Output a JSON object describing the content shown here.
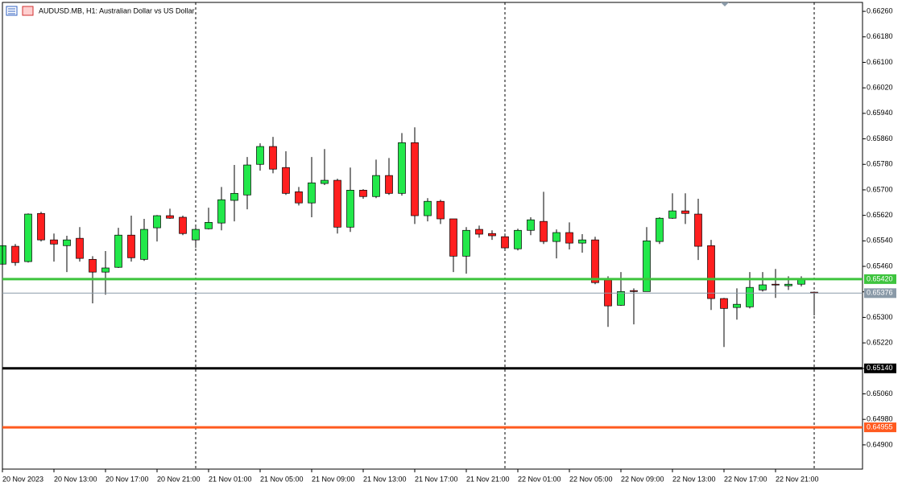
{
  "chart_data": {
    "type": "candlestick",
    "title": "AUDUSD.MB, H1:  Australian Dollar vs US Dollar",
    "categories": [
      "20 Nov 2023",
      null,
      null,
      null,
      "20 Nov 13:00",
      null,
      null,
      null,
      "20 Nov 17:00",
      null,
      null,
      null,
      "20 Nov 21:00",
      null,
      null,
      null,
      "21 Nov 01:00",
      null,
      null,
      null,
      "21 Nov 05:00",
      null,
      null,
      null,
      "21 Nov 09:00",
      null,
      null,
      null,
      "21 Nov 13:00",
      null,
      null,
      null,
      "21 Nov 17:00",
      null,
      null,
      null,
      "21 Nov 21:00",
      null,
      null,
      null,
      "22 Nov 01:00",
      null,
      null,
      null,
      "22 Nov 05:00",
      null,
      null,
      null,
      "22 Nov 09:00",
      null,
      null,
      null,
      "22 Nov 13:00",
      null,
      null,
      null,
      "22 Nov 17:00",
      null,
      null,
      null,
      "22 Nov 21:00",
      null,
      null,
      null
    ],
    "open": [
      0.65467,
      0.65523,
      0.65475,
      0.65626,
      0.65543,
      0.65525,
      0.65548,
      0.65482,
      0.65442,
      0.65457,
      0.65558,
      0.65482,
      0.65581,
      0.65619,
      0.65614,
      0.65543,
      0.65578,
      0.65596,
      0.65667,
      0.65684,
      0.6578,
      0.65836,
      0.6577,
      0.65694,
      0.65659,
      0.6572,
      0.6573,
      0.65583,
      0.65699,
      0.65679,
      0.65745,
      0.65689,
      0.65848,
      0.65619,
      0.65664,
      0.65609,
      0.65492,
      0.65576,
      0.65563,
      0.65553,
      0.65515,
      0.65573,
      0.65601,
      0.65538,
      0.65566,
      0.65533,
      0.65543,
      0.65417,
      0.65338,
      0.65384,
      0.65381,
      0.65538,
      0.65611,
      0.65634,
      0.65624,
      0.65525,
      0.65359,
      0.65331,
      0.65333,
      0.65386,
      0.65404,
      0.65399,
      0.65404,
      0.65379
    ],
    "high": [
      0.6553,
      0.6553,
      0.65626,
      0.65631,
      0.65563,
      0.65556,
      0.65583,
      0.65492,
      0.65508,
      0.65581,
      0.65619,
      0.65609,
      0.65621,
      0.65641,
      0.65619,
      0.65583,
      0.65644,
      0.65709,
      0.65778,
      0.65803,
      0.65846,
      0.65866,
      0.65821,
      0.65709,
      0.65803,
      0.65828,
      0.65735,
      0.6577,
      0.65702,
      0.65795,
      0.658,
      0.65878,
      0.65896,
      0.65674,
      0.65669,
      0.65609,
      0.65583,
      0.65588,
      0.65573,
      0.65563,
      0.65578,
      0.65614,
      0.65694,
      0.65576,
      0.65598,
      0.65561,
      0.65553,
      0.65429,
      0.65442,
      0.65391,
      0.65583,
      0.65614,
      0.65689,
      0.65689,
      0.65672,
      0.65543,
      0.65361,
      0.65391,
      0.65442,
      0.65442,
      0.65452,
      0.65429,
      0.65429,
      0.65381
    ],
    "low": [
      0.65462,
      0.65462,
      0.65472,
      0.65538,
      0.65475,
      0.65442,
      0.65475,
      0.65344,
      0.65371,
      0.65455,
      0.65475,
      0.65477,
      0.65538,
      0.65609,
      0.65558,
      0.65518,
      0.65576,
      0.65573,
      0.65601,
      0.65639,
      0.6576,
      0.65752,
      0.65684,
      0.65651,
      0.65614,
      0.65715,
      0.65563,
      0.65568,
      0.65672,
      0.65674,
      0.65684,
      0.65682,
      0.65593,
      0.65601,
      0.65593,
      0.65442,
      0.65437,
      0.6555,
      0.65543,
      0.65508,
      0.6551,
      0.65558,
      0.6553,
      0.65485,
      0.65513,
      0.65503,
      0.65404,
      0.6527,
      0.65336,
      0.65278,
      0.65381,
      0.6553,
      0.65609,
      0.65593,
      0.6548,
      0.65323,
      0.65207,
      0.65293,
      0.65328,
      0.65381,
      0.65361,
      0.65386,
      0.65397,
      0.65306
    ],
    "close": [
      0.65525,
      0.65472,
      0.65624,
      0.65543,
      0.6553,
      0.65543,
      0.65485,
      0.65442,
      0.65455,
      0.65558,
      0.65487,
      0.65576,
      0.65619,
      0.65611,
      0.65563,
      0.65576,
      0.65598,
      0.65669,
      0.65689,
      0.65778,
      0.65836,
      0.65765,
      0.65689,
      0.65659,
      0.65722,
      0.6573,
      0.65583,
      0.65699,
      0.65679,
      0.65745,
      0.65689,
      0.65848,
      0.65619,
      0.65664,
      0.65609,
      0.65492,
      0.65573,
      0.65561,
      0.65556,
      0.65518,
      0.65573,
      0.65606,
      0.65538,
      0.65566,
      0.65533,
      0.65543,
      0.65409,
      0.65336,
      0.65381,
      0.65381,
      0.6554,
      0.65611,
      0.65634,
      0.65626,
      0.65523,
      0.65359,
      0.65328,
      0.65341,
      0.65394,
      0.65402,
      0.65402,
      0.65404,
      0.65422,
      0.65376
    ],
    "up_color": "#22e84a",
    "down_color": "#ff1f1f",
    "ylim": [
      0.64824,
      0.66288
    ],
    "yticks": [
      {
        "value": 0.6626,
        "label": "0.66260"
      },
      {
        "value": 0.6618,
        "label": "0.66180"
      },
      {
        "value": 0.661,
        "label": "0.66100"
      },
      {
        "value": 0.6602,
        "label": "0.66020"
      },
      {
        "value": 0.6594,
        "label": "0.65940"
      },
      {
        "value": 0.6586,
        "label": "0.65860"
      },
      {
        "value": 0.6578,
        "label": "0.65780"
      },
      {
        "value": 0.657,
        "label": "0.65700"
      },
      {
        "value": 0.6562,
        "label": "0.65620"
      },
      {
        "value": 0.6554,
        "label": "0.65540"
      },
      {
        "value": 0.6546,
        "label": "0.65460"
      },
      {
        "value": 0.6538,
        "label": "0.65380"
      },
      {
        "value": 0.653,
        "label": "0.65300"
      },
      {
        "value": 0.6522,
        "label": "0.65220"
      },
      {
        "value": 0.6514,
        "label": "0.65140"
      },
      {
        "value": 0.6506,
        "label": "0.65060"
      },
      {
        "value": 0.6498,
        "label": "0.64980"
      },
      {
        "value": 0.649,
        "label": "0.64900"
      }
    ],
    "hlines": [
      {
        "value": 0.6542,
        "label": "0.65420",
        "color": "#3ec43e",
        "width": 3
      },
      {
        "value": 0.65376,
        "label": "0.65376",
        "color": "#8a9aa8",
        "width": 1
      },
      {
        "value": 0.6514,
        "label": "0.65140",
        "color": "#000000",
        "width": 3
      },
      {
        "value": 0.64955,
        "label": "0.64955",
        "color": "#ff5a1f",
        "width": 3
      }
    ]
  }
}
